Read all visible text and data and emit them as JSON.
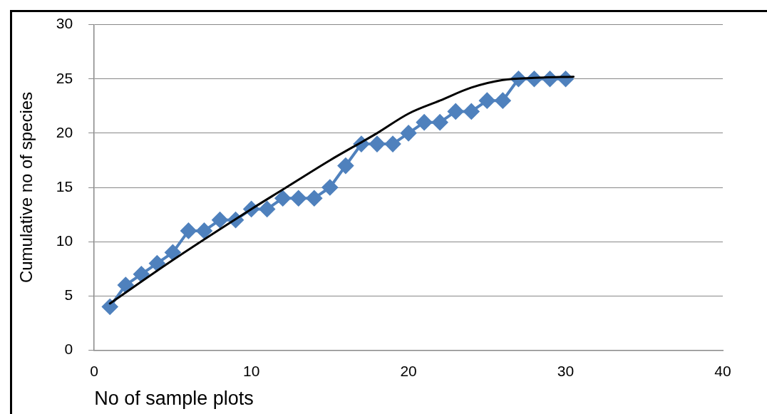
{
  "chart_data": {
    "type": "line",
    "xlabel": "No of sample plots",
    "ylabel": "Cumulative no of species",
    "xlim": [
      0,
      40
    ],
    "xticks": [
      0,
      10,
      20,
      30,
      40
    ],
    "ylim": [
      0,
      30
    ],
    "yticks": [
      0,
      5,
      10,
      15,
      20,
      25,
      30
    ],
    "grid": "y",
    "legend": false,
    "series": [
      {
        "color": "#4f81bd",
        "marker": "diamond",
        "x": [
          1,
          2,
          3,
          4,
          5,
          6,
          7,
          8,
          9,
          10,
          11,
          12,
          13,
          14,
          15,
          16,
          17,
          18,
          19,
          20,
          21,
          22,
          23,
          24,
          25,
          26,
          27,
          28,
          29,
          30
        ],
        "values": [
          4,
          6,
          7,
          8,
          9,
          11,
          11,
          12,
          12,
          13,
          13,
          14,
          14,
          14,
          15,
          17,
          19,
          19,
          19,
          20,
          21,
          21,
          22,
          22,
          23,
          23,
          25,
          25,
          25,
          25
        ]
      },
      {
        "color": "#000000",
        "marker": "none",
        "x": [
          1,
          5,
          10,
          12,
          15,
          18,
          20,
          22,
          24,
          26,
          28,
          30.5
        ],
        "values": [
          4.3,
          8.3,
          13,
          14.8,
          17.5,
          20,
          21.8,
          23,
          24.2,
          24.9,
          25.1,
          25.2
        ]
      }
    ]
  }
}
